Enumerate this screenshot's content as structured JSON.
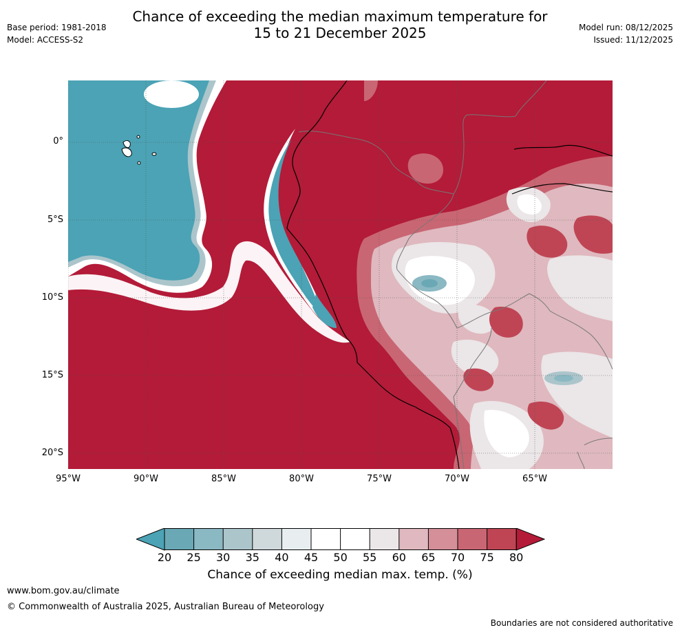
{
  "header": {
    "title_line1": "Chance of exceeding the median maximum temperature for",
    "title_line2": "15 to 21 December 2025",
    "base_period": "Base period: 1981-2018",
    "model": "Model: ACCESS-S2",
    "model_run": "Model run: 08/12/2025",
    "issued": "Issued: 11/12/2025"
  },
  "map": {
    "lat_labels": [
      "0°",
      "5°S",
      "10°S",
      "15°S",
      "20°S"
    ],
    "lon_labels": [
      "95°W",
      "90°W",
      "85°W",
      "80°W",
      "75°W",
      "70°W",
      "65°W"
    ]
  },
  "colorbar": {
    "ticks": [
      "20",
      "25",
      "30",
      "35",
      "40",
      "45",
      "50",
      "55",
      "60",
      "65",
      "70",
      "75",
      "80"
    ],
    "colors": {
      "below_20": "#4ba3b5",
      "c20_25": "#6aa8b5",
      "c25_30": "#8ab8c3",
      "c30_35": "#abc5cb",
      "c35_40": "#cfd8db",
      "c40_45": "#e8eef0",
      "c45_50": "#ffffff",
      "c50_55": "#ffffff",
      "c55_60": "#ebe6e8",
      "c60_65": "#dfb9bf",
      "c65_70": "#d48f98",
      "c70_75": "#c96673",
      "c75_80": "#bf4555",
      "above_80": "#b31b38"
    },
    "label": "Chance of exceeding median max. temp. (%)"
  },
  "footer": {
    "url": "www.bom.gov.au/climate",
    "copyright": "© Commonwealth of Australia 2025, Australian Bureau of Meteorology",
    "disclaimer": "Boundaries are not considered authoritative"
  }
}
